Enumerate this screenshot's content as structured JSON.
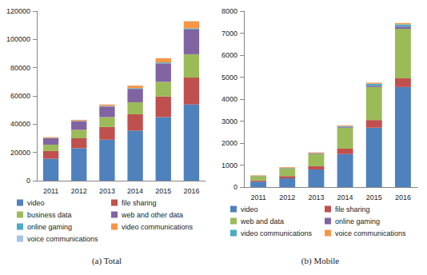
{
  "chart_data": [
    {
      "type": "bar",
      "title": "(a) Total",
      "stacked": true,
      "grid": false,
      "legend": "bottom",
      "categories": [
        "2011",
        "2012",
        "2013",
        "2014",
        "2015",
        "2016"
      ],
      "ylim": [
        0,
        120000
      ],
      "yticks": [
        0,
        20000,
        40000,
        60000,
        80000,
        100000,
        120000
      ],
      "series": [
        {
          "name": "video",
          "color": "#4f81bd",
          "values": [
            15500,
            23000,
            29000,
            35500,
            45000,
            54000
          ]
        },
        {
          "name": "file sharing",
          "color": "#c0504d",
          "values": [
            5500,
            7000,
            9000,
            11500,
            14500,
            19000
          ]
        },
        {
          "name": "business data",
          "color": "#9bbb59",
          "values": [
            4500,
            6000,
            7000,
            8500,
            10500,
            16500
          ]
        },
        {
          "name": "web and other data",
          "color": "#8064a2",
          "values": [
            4500,
            6000,
            7500,
            9500,
            13000,
            17500
          ]
        },
        {
          "name": "online gaming",
          "color": "#4bacc6",
          "values": [
            200,
            300,
            400,
            500,
            700,
            800
          ]
        },
        {
          "name": "video communications",
          "color": "#f79646",
          "values": [
            600,
            700,
            1000,
            1800,
            3000,
            5000
          ]
        },
        {
          "name": "voice communications",
          "color": "#a6c3e6",
          "values": [
            100,
            100,
            100,
            100,
            100,
            200
          ]
        }
      ]
    },
    {
      "type": "bar",
      "title": "(b) Mobile",
      "stacked": true,
      "grid": false,
      "legend": "bottom",
      "categories": [
        "2011",
        "2012",
        "2013",
        "2014",
        "2015",
        "2016"
      ],
      "ylim": [
        0,
        8000
      ],
      "yticks": [
        0,
        1000,
        2000,
        3000,
        4000,
        5000,
        6000,
        7000,
        8000
      ],
      "series": [
        {
          "name": "video",
          "color": "#4f81bd",
          "values": [
            250,
            400,
            800,
            1500,
            2700,
            4550
          ]
        },
        {
          "name": "file sharing",
          "color": "#c0504d",
          "values": [
            50,
            100,
            150,
            250,
            350,
            400
          ]
        },
        {
          "name": "web and data",
          "color": "#9bbb59",
          "values": [
            200,
            350,
            550,
            950,
            1500,
            2250
          ]
        },
        {
          "name": "online gaming",
          "color": "#8064a2",
          "values": [
            10,
            15,
            25,
            40,
            60,
            100
          ]
        },
        {
          "name": "video communications",
          "color": "#4bacc6",
          "values": [
            5,
            10,
            20,
            30,
            90,
            100
          ]
        },
        {
          "name": "voice communications",
          "color": "#f79646",
          "values": [
            20,
            30,
            35,
            40,
            50,
            60
          ]
        }
      ]
    }
  ]
}
